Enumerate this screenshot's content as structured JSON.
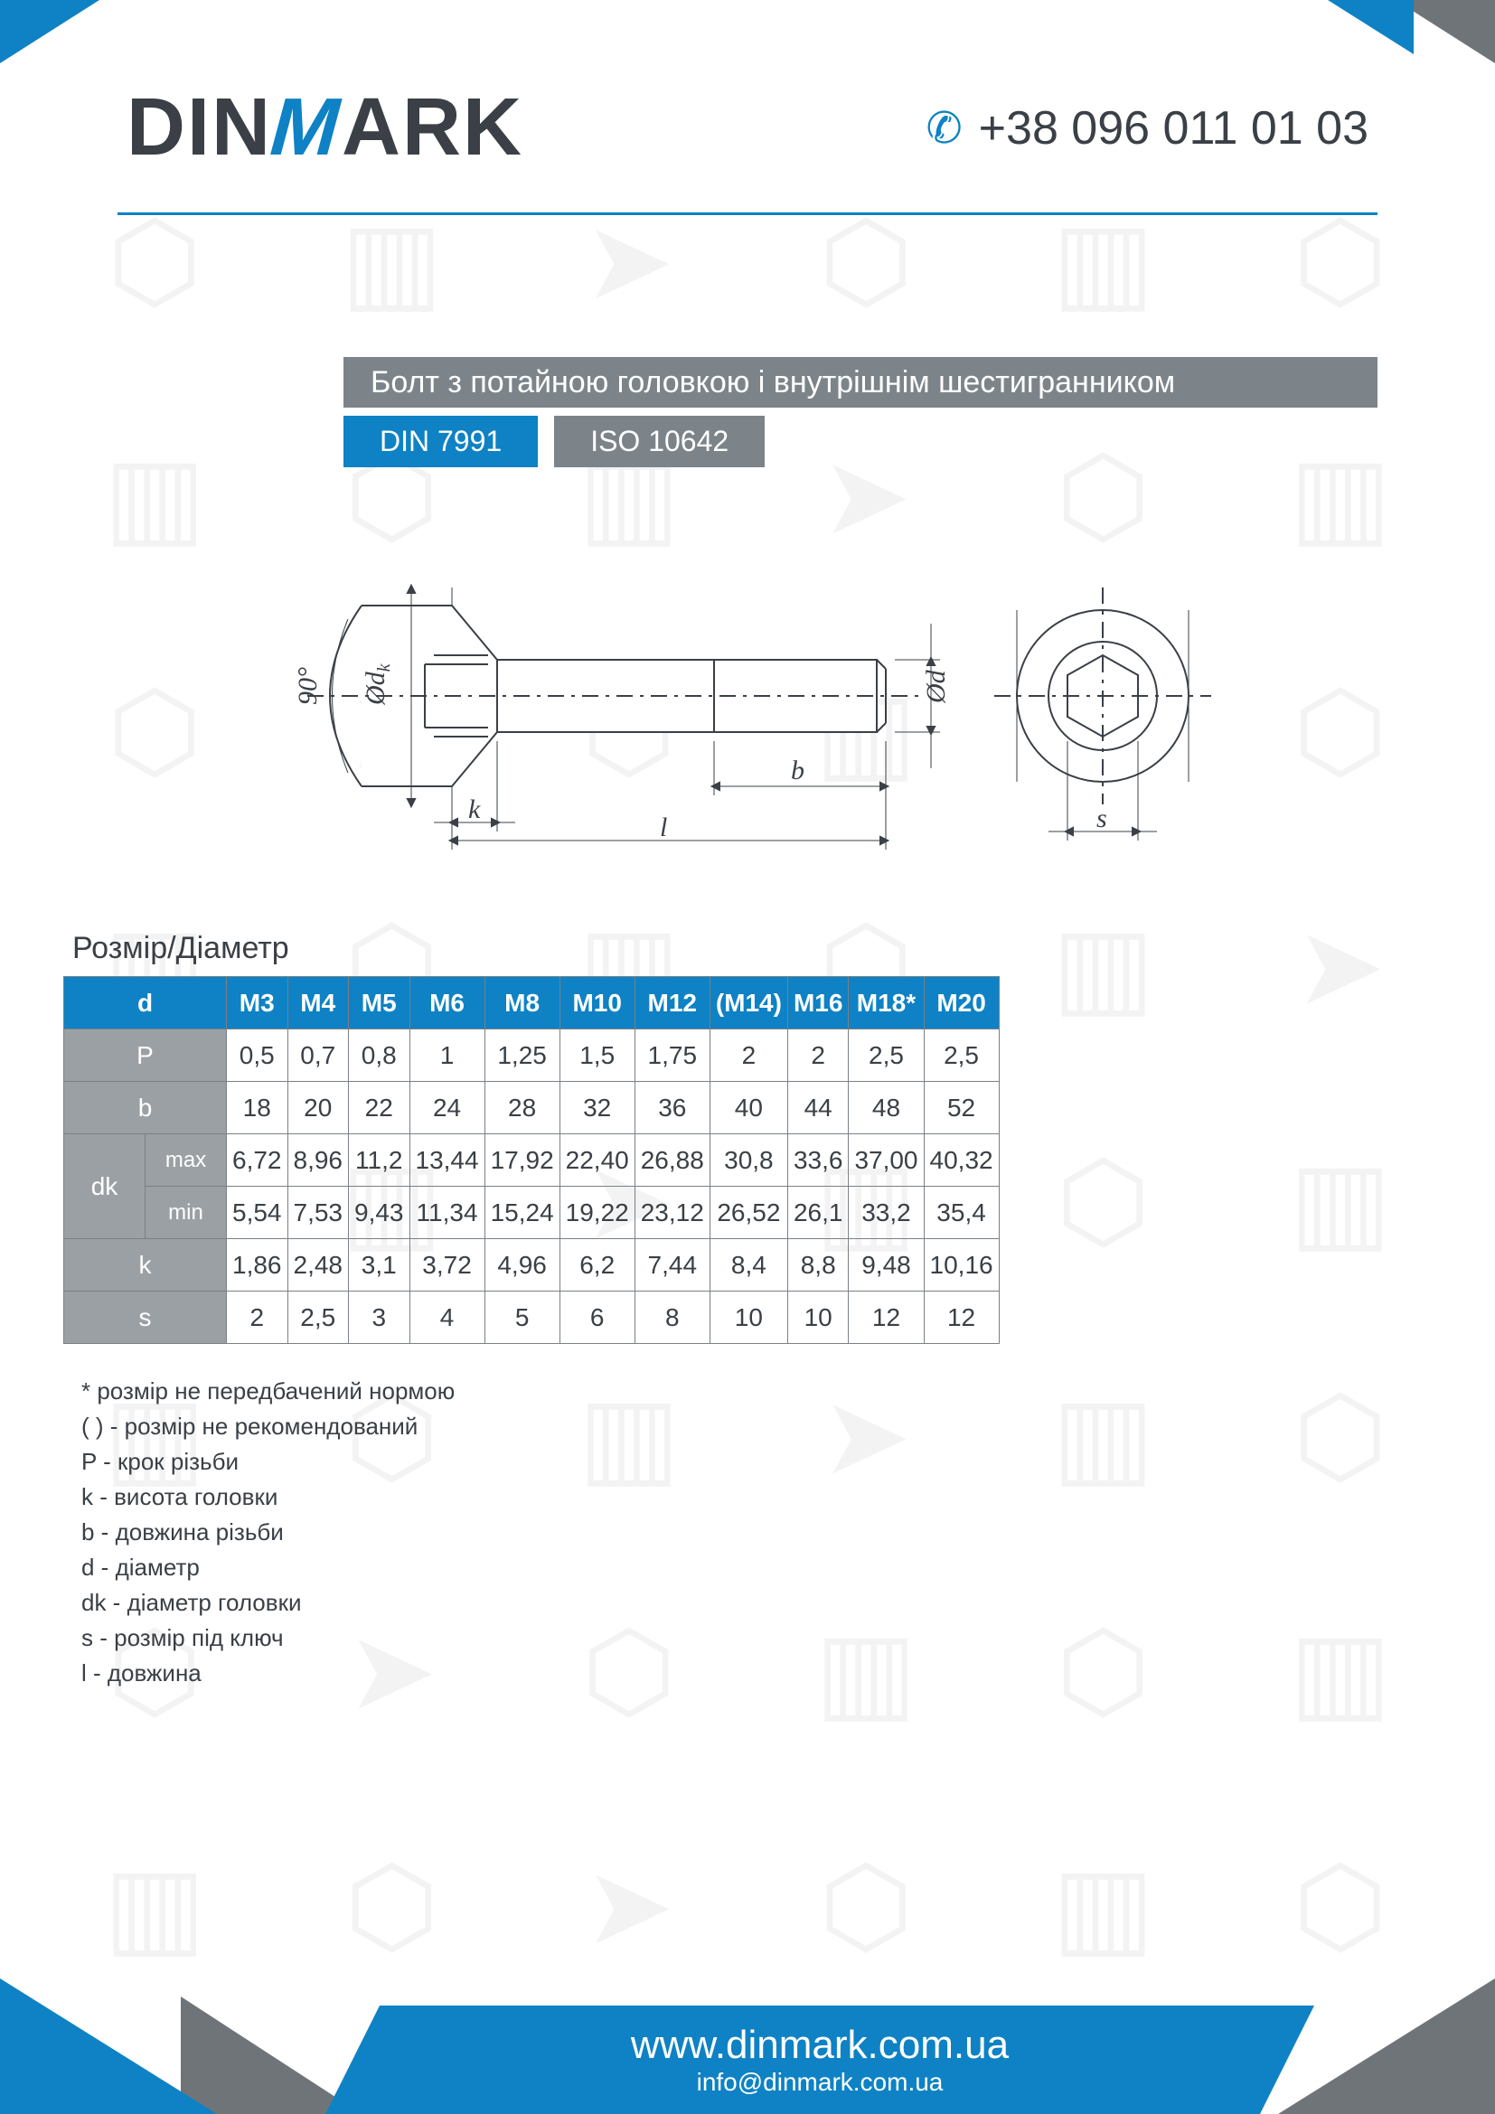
{
  "brand": {
    "pre": "DIN",
    "accent": "M",
    "post": "ARK"
  },
  "phone": "+38 096 011 01 03",
  "title": "Болт з потайною головкою і внутрішнім шестигранником",
  "standards": {
    "din": "DIN 7991",
    "iso": "ISO 10642"
  },
  "diagram": {
    "angle": "90°",
    "labels": {
      "dk": "Ød",
      "dk_sub": "k",
      "d": "Ød",
      "b": "b",
      "l": "l",
      "k": "k",
      "s": "s"
    }
  },
  "table": {
    "title": "Розмір/Діаметр",
    "header_d": "d",
    "sizes": [
      "M3",
      "M4",
      "M5",
      "M6",
      "M8",
      "M10",
      "M12",
      "(M14)",
      "M16",
      "M18*",
      "M20"
    ],
    "rows": [
      {
        "label": "P",
        "values": [
          "0,5",
          "0,7",
          "0,8",
          "1",
          "1,25",
          "1,5",
          "1,75",
          "2",
          "2",
          "2,5",
          "2,5"
        ]
      },
      {
        "label": "b",
        "values": [
          "18",
          "20",
          "22",
          "24",
          "28",
          "32",
          "36",
          "40",
          "44",
          "48",
          "52"
        ]
      },
      {
        "label": "dk",
        "sub": "max",
        "values": [
          "6,72",
          "8,96",
          "11,2",
          "13,44",
          "17,92",
          "22,40",
          "26,88",
          "30,8",
          "33,6",
          "37,00",
          "40,32"
        ]
      },
      {
        "label": "",
        "sub": "min",
        "values": [
          "5,54",
          "7,53",
          "9,43",
          "11,34",
          "15,24",
          "19,22",
          "23,12",
          "26,52",
          "26,1",
          "33,2",
          "35,4"
        ]
      },
      {
        "label": "k",
        "values": [
          "1,86",
          "2,48",
          "3,1",
          "3,72",
          "4,96",
          "6,2",
          "7,44",
          "8,4",
          "8,8",
          "9,48",
          "10,16"
        ]
      },
      {
        "label": "s",
        "values": [
          "2",
          "2,5",
          "3",
          "4",
          "5",
          "6",
          "8",
          "10",
          "10",
          "12",
          "12"
        ]
      }
    ]
  },
  "notes": [
    "* розмір не передбачений нормою",
    "( ) - розмір не рекомендований",
    "P - крок різьби",
    "k - висота головки",
    "b - довжина різьби",
    "d - діаметр",
    "dk - діаметр головки",
    "s - розмір під ключ",
    "l - довжина"
  ],
  "footer": {
    "url": "www.dinmark.com.ua",
    "email": "info@dinmark.com.ua"
  },
  "colors": {
    "accent": "#0e82c4",
    "grey": "#7d8489",
    "table_rowhdr": "#9ba0a5",
    "text": "#3a4046"
  }
}
